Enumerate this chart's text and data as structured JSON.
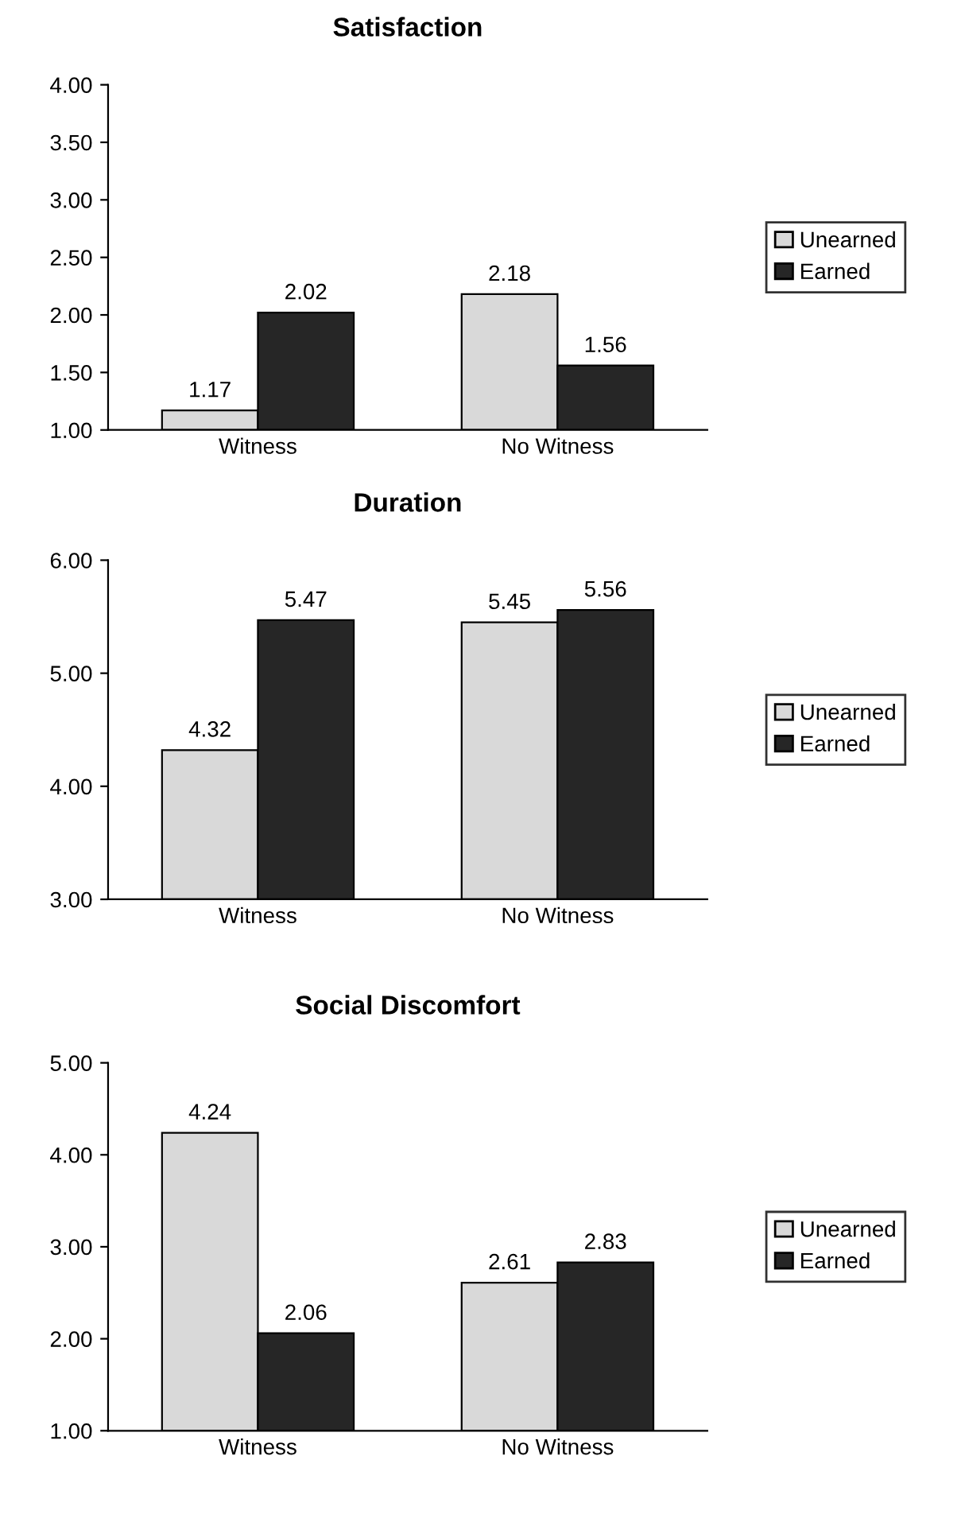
{
  "chart_data": [
    {
      "type": "bar",
      "title": "Satisfaction",
      "categories": [
        "Witness",
        "No Witness"
      ],
      "series": [
        {
          "name": "Unearned",
          "color": "#d9d9d9",
          "values": [
            1.17,
            2.18
          ]
        },
        {
          "name": "Earned",
          "color": "#262626",
          "values": [
            2.02,
            1.56
          ]
        }
      ],
      "ylim": [
        1,
        4
      ],
      "yticks": [
        {
          "value": 1,
          "label": "1.00"
        },
        {
          "value": 1.5,
          "label": "1.50"
        },
        {
          "value": 2,
          "label": "2.00"
        },
        {
          "value": 2.5,
          "label": "2.50"
        },
        {
          "value": 3,
          "label": "3.00"
        },
        {
          "value": 3.5,
          "label": "3.50"
        },
        {
          "value": 4,
          "label": "4.00"
        }
      ],
      "data_labels": true,
      "legend": "right"
    },
    {
      "type": "bar",
      "title": "Duration",
      "categories": [
        "Witness",
        "No Witness"
      ],
      "series": [
        {
          "name": "Unearned",
          "color": "#d9d9d9",
          "values": [
            4.32,
            5.45
          ]
        },
        {
          "name": "Earned",
          "color": "#262626",
          "values": [
            5.47,
            5.56
          ]
        }
      ],
      "ylim": [
        3,
        6
      ],
      "yticks": [
        {
          "value": 3,
          "label": "3.00"
        },
        {
          "value": 4,
          "label": "4.00"
        },
        {
          "value": 5,
          "label": "5.00"
        },
        {
          "value": 6,
          "label": "6.00"
        }
      ],
      "data_labels": true,
      "legend": "right"
    },
    {
      "type": "bar",
      "title": "Social Discomfort",
      "categories": [
        "Witness",
        "No Witness"
      ],
      "series": [
        {
          "name": "Unearned",
          "color": "#d9d9d9",
          "values": [
            4.24,
            2.61
          ]
        },
        {
          "name": "Earned",
          "color": "#262626",
          "values": [
            2.06,
            2.83
          ]
        }
      ],
      "ylim": [
        1,
        5
      ],
      "yticks": [
        {
          "value": 1,
          "label": "1.00"
        },
        {
          "value": 2,
          "label": "2.00"
        },
        {
          "value": 3,
          "label": "3.00"
        },
        {
          "value": 4,
          "label": "4.00"
        },
        {
          "value": 5,
          "label": "5.00"
        }
      ],
      "data_labels": true,
      "legend": "right"
    }
  ]
}
